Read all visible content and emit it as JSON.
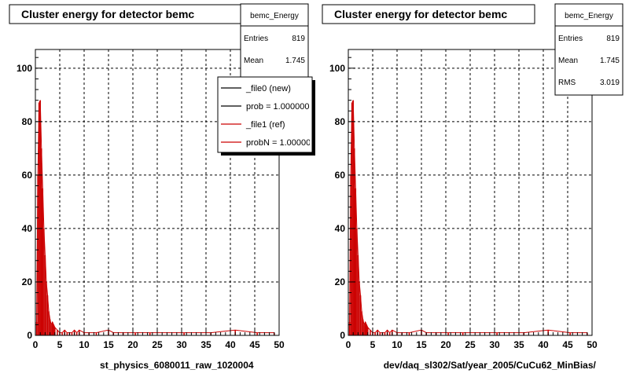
{
  "chart_data": [
    {
      "type": "bar",
      "title": "Cluster energy for detector bemc",
      "xlabel": "st_physics_6080011_raw_1020004",
      "ylabel": "",
      "xlim": [
        0,
        50
      ],
      "ylim": [
        0,
        107
      ],
      "xticks": [
        0,
        5,
        10,
        15,
        20,
        25,
        30,
        35,
        40,
        45,
        50
      ],
      "yticks": [
        0,
        20,
        40,
        60,
        80,
        100
      ],
      "grid": true,
      "stats": {
        "name": "bemc_Energy",
        "rows": [
          {
            "label": "Entries",
            "value": "819"
          },
          {
            "label": "Mean",
            "value": "1.745"
          }
        ]
      },
      "legend": {
        "placement": "top-right",
        "entries": [
          {
            "label": "_file0 (new)",
            "color": "#000000"
          },
          {
            "label": "prob = 1.000000",
            "color": "#000000"
          },
          {
            "label": "_file1 (ref)",
            "color": "#cc0000"
          },
          {
            "label": "probN = 1.000000",
            "color": "#cc0000"
          }
        ]
      },
      "series": [
        {
          "color": "#cc0000",
          "x": [
            0.25,
            0.5,
            0.75,
            1.0,
            1.25,
            1.5,
            1.75,
            2.0,
            2.25,
            2.5,
            2.75,
            3.0,
            3.25,
            3.5,
            3.75,
            4.0,
            4.5,
            5.0,
            5.5,
            6.0,
            6.5,
            7.0,
            7.5,
            8.0,
            8.5,
            9.0,
            10.0,
            11.0,
            12.5,
            15.0,
            16.0,
            18.0,
            20.5,
            23.5,
            30.5,
            36.0,
            41.0,
            45.5,
            49.0
          ],
          "values": [
            5,
            60,
            87,
            88,
            70,
            55,
            40,
            30,
            20,
            15,
            9,
            6,
            4,
            5,
            4,
            3,
            2,
            1,
            1,
            2,
            1,
            1,
            1,
            2,
            1,
            2,
            1,
            1,
            1,
            2,
            1,
            1,
            1,
            1,
            1,
            1,
            2,
            1,
            1
          ]
        }
      ]
    },
    {
      "type": "bar",
      "title": "Cluster energy for detector bemc",
      "xlabel": "dev/daq_sl302/Sat/year_2005/CuCu62_MinBias/",
      "ylabel": "",
      "xlim": [
        0,
        50
      ],
      "ylim": [
        0,
        107
      ],
      "xticks": [
        0,
        5,
        10,
        15,
        20,
        25,
        30,
        35,
        40,
        45,
        50
      ],
      "yticks": [
        0,
        20,
        40,
        60,
        80,
        100
      ],
      "grid": true,
      "stats": {
        "name": "bemc_Energy",
        "rows": [
          {
            "label": "Entries",
            "value": "819"
          },
          {
            "label": "Mean",
            "value": "1.745"
          },
          {
            "label": "RMS",
            "value": "3.019"
          }
        ]
      },
      "series": [
        {
          "color": "#cc0000",
          "x": [
            0.25,
            0.5,
            0.75,
            1.0,
            1.25,
            1.5,
            1.75,
            2.0,
            2.25,
            2.5,
            2.75,
            3.0,
            3.25,
            3.5,
            3.75,
            4.0,
            4.5,
            5.0,
            5.5,
            6.0,
            6.5,
            7.0,
            7.5,
            8.0,
            8.5,
            9.0,
            10.0,
            11.0,
            12.5,
            15.0,
            16.0,
            18.0,
            20.5,
            23.5,
            30.5,
            36.0,
            41.0,
            45.5,
            49.0
          ],
          "values": [
            5,
            60,
            87,
            88,
            70,
            55,
            40,
            30,
            20,
            15,
            9,
            6,
            4,
            5,
            4,
            3,
            2,
            1,
            1,
            2,
            1,
            1,
            1,
            2,
            1,
            2,
            1,
            1,
            1,
            2,
            1,
            1,
            1,
            1,
            1,
            1,
            2,
            1,
            1
          ]
        }
      ]
    }
  ]
}
